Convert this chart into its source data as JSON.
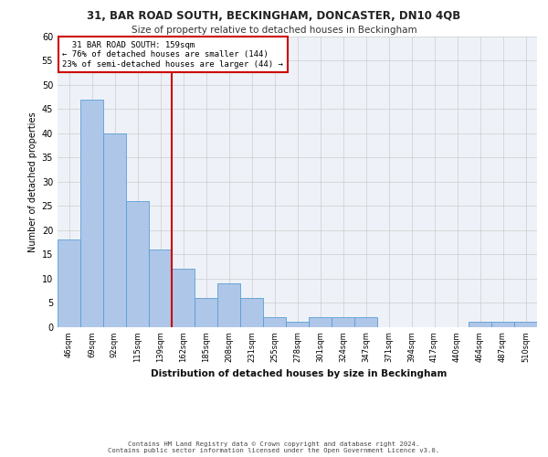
{
  "title_line1": "31, BAR ROAD SOUTH, BECKINGHAM, DONCASTER, DN10 4QB",
  "title_line2": "Size of property relative to detached houses in Beckingham",
  "xlabel": "Distribution of detached houses by size in Beckingham",
  "ylabel": "Number of detached properties",
  "categories": [
    "46sqm",
    "69sqm",
    "92sqm",
    "115sqm",
    "139sqm",
    "162sqm",
    "185sqm",
    "208sqm",
    "231sqm",
    "255sqm",
    "278sqm",
    "301sqm",
    "324sqm",
    "347sqm",
    "371sqm",
    "394sqm",
    "417sqm",
    "440sqm",
    "464sqm",
    "487sqm",
    "510sqm"
  ],
  "values": [
    18,
    47,
    40,
    26,
    16,
    12,
    6,
    9,
    6,
    2,
    1,
    2,
    2,
    2,
    0,
    0,
    0,
    0,
    1,
    1,
    1
  ],
  "bar_color": "#aec6e8",
  "bar_edge_color": "#5a9fd4",
  "grid_color": "#cccccc",
  "bg_color": "#eef2f8",
  "vline_x_index": 4.5,
  "vline_color": "#cc0000",
  "annotation_text": "  31 BAR ROAD SOUTH: 159sqm\n← 76% of detached houses are smaller (144)\n23% of semi-detached houses are larger (44) →",
  "annotation_box_color": "#cc0000",
  "ylim": [
    0,
    60
  ],
  "yticks": [
    0,
    5,
    10,
    15,
    20,
    25,
    30,
    35,
    40,
    45,
    50,
    55,
    60
  ],
  "footer_line1": "Contains HM Land Registry data © Crown copyright and database right 2024.",
  "footer_line2": "Contains public sector information licensed under the Open Government Licence v3.0."
}
